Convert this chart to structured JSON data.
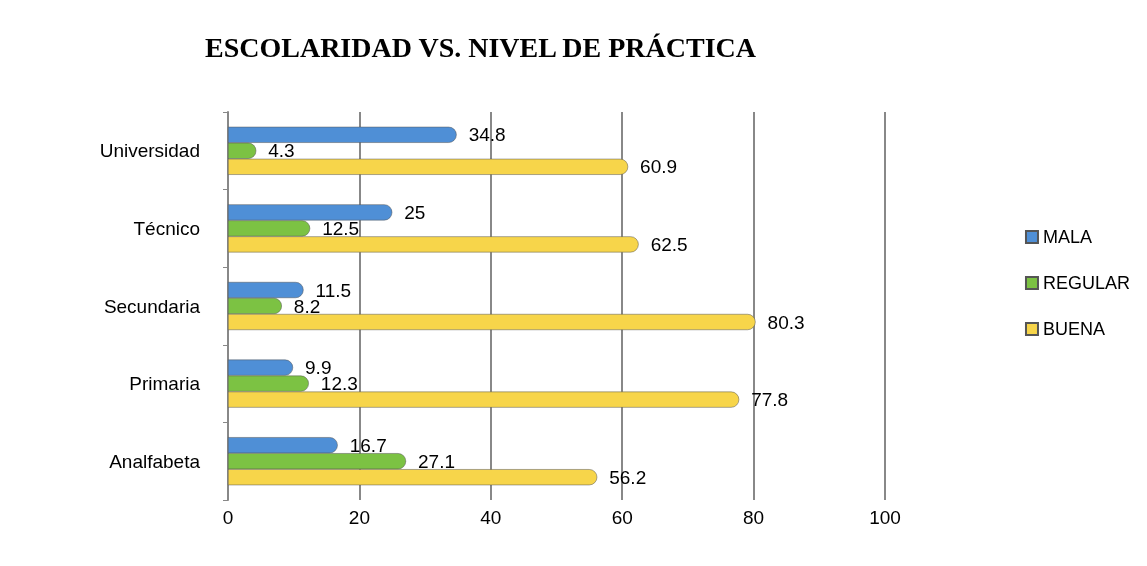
{
  "chart_data": {
    "type": "bar",
    "orientation": "horizontal",
    "title": "ESCOLARIDAD VS. NIVEL DE PRÁCTICA",
    "categories": [
      "Universidad",
      "Técnico",
      "Secundaria",
      "Primaria",
      "Analfabeta"
    ],
    "series": [
      {
        "name": "MALA",
        "color": "#4f8fd6",
        "values": [
          34.8,
          25,
          11.5,
          9.9,
          16.7
        ]
      },
      {
        "name": "REGULAR",
        "color": "#7cc243",
        "values": [
          4.3,
          12.5,
          8.2,
          12.3,
          27.1
        ]
      },
      {
        "name": "BUENA",
        "color": "#f7d54a",
        "values": [
          60.9,
          62.5,
          80.3,
          77.8,
          56.2
        ]
      }
    ],
    "xlim": [
      0,
      100
    ],
    "xticks": [
      0,
      20,
      40,
      60,
      80,
      100
    ],
    "grid": "x",
    "legend": "right",
    "data_labels": true
  }
}
